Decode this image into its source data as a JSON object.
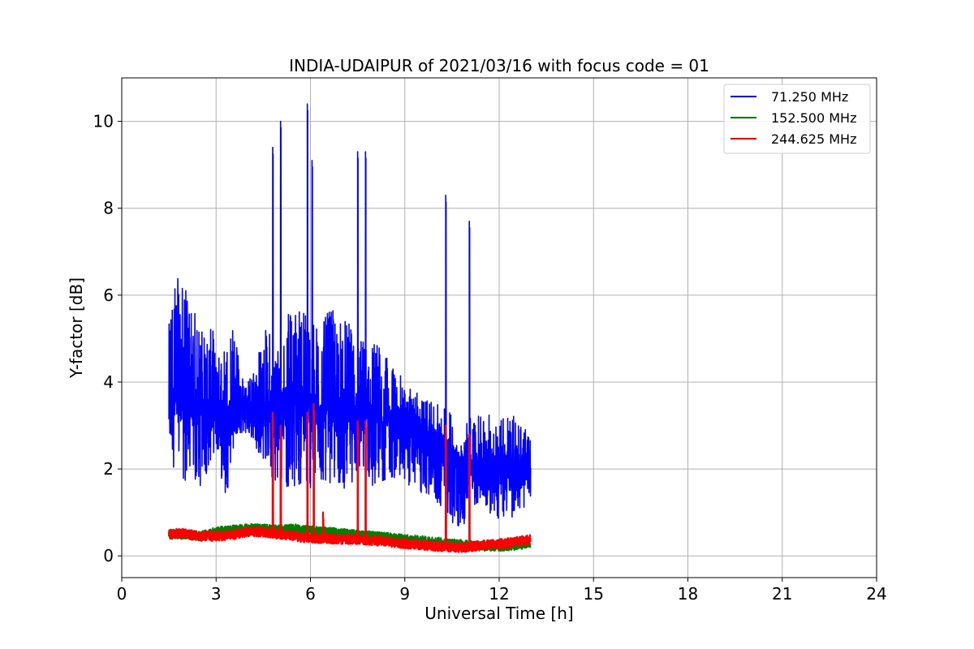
{
  "chart_data": {
    "type": "line",
    "title": "INDIA-UDAIPUR of 2021/03/16 with focus code = 01",
    "xlabel": "Universal Time [h]",
    "ylabel": "Y-factor [dB]",
    "xlim": [
      0,
      24
    ],
    "ylim": [
      -0.5,
      11.0
    ],
    "xticks": [
      0,
      3,
      6,
      9,
      12,
      15,
      18,
      21,
      24
    ],
    "yticks": [
      0,
      2,
      4,
      6,
      8,
      10
    ],
    "grid": true,
    "legend_position": "top-right",
    "series": [
      {
        "name": " 71.250 MHz",
        "color": "#0000ff",
        "baseline": [
          [
            1.5,
            3.4
          ],
          [
            2.0,
            3.6
          ],
          [
            2.5,
            3.3
          ],
          [
            3.0,
            3.3
          ],
          [
            3.5,
            3.2
          ],
          [
            4.0,
            3.3
          ],
          [
            4.5,
            3.4
          ],
          [
            5.0,
            3.5
          ],
          [
            5.5,
            3.6
          ],
          [
            6.0,
            3.4
          ],
          [
            6.5,
            3.3
          ],
          [
            7.0,
            3.4
          ],
          [
            7.5,
            3.2
          ],
          [
            8.0,
            3.1
          ],
          [
            8.5,
            3.1
          ],
          [
            9.0,
            3.0
          ],
          [
            9.5,
            2.8
          ],
          [
            10.0,
            2.5
          ],
          [
            10.5,
            2.2
          ],
          [
            11.0,
            2.0
          ],
          [
            11.5,
            1.9
          ],
          [
            12.0,
            1.9
          ],
          [
            12.5,
            1.9
          ],
          [
            13.0,
            2.0
          ]
        ],
        "envelope_max": [
          [
            1.5,
            5.3
          ],
          [
            1.6,
            6.3
          ],
          [
            1.8,
            6.4
          ],
          [
            2.0,
            6.2
          ],
          [
            2.2,
            5.9
          ],
          [
            2.5,
            5.3
          ],
          [
            2.9,
            5.2
          ],
          [
            3.0,
            4.5
          ],
          [
            3.2,
            4.8
          ],
          [
            3.5,
            5.4
          ],
          [
            3.8,
            4.4
          ],
          [
            4.0,
            4.0
          ],
          [
            4.3,
            4.6
          ],
          [
            4.6,
            5.3
          ],
          [
            5.0,
            5.0
          ],
          [
            5.3,
            5.6
          ],
          [
            5.6,
            5.9
          ],
          [
            6.0,
            5.7
          ],
          [
            6.3,
            5.2
          ],
          [
            6.6,
            5.7
          ],
          [
            7.0,
            5.5
          ],
          [
            7.3,
            5.3
          ],
          [
            7.6,
            5.0
          ],
          [
            8.0,
            5.1
          ],
          [
            8.4,
            4.6
          ],
          [
            8.8,
            4.2
          ],
          [
            9.2,
            3.9
          ],
          [
            9.6,
            3.6
          ],
          [
            10.0,
            3.5
          ],
          [
            10.5,
            3.4
          ],
          [
            10.8,
            2.2
          ],
          [
            11.0,
            3.3
          ],
          [
            11.4,
            3.2
          ],
          [
            11.8,
            3.3
          ],
          [
            12.2,
            3.3
          ],
          [
            12.6,
            3.2
          ],
          [
            13.0,
            2.7
          ]
        ],
        "envelope_min": [
          [
            1.5,
            2.2
          ],
          [
            2.0,
            1.6
          ],
          [
            2.5,
            1.5
          ],
          [
            3.0,
            2.5
          ],
          [
            3.3,
            1.2
          ],
          [
            3.6,
            2.7
          ],
          [
            4.0,
            2.8
          ],
          [
            4.5,
            2.2
          ],
          [
            5.0,
            1.5
          ],
          [
            5.5,
            1.6
          ],
          [
            6.0,
            1.5
          ],
          [
            6.5,
            1.7
          ],
          [
            7.0,
            1.5
          ],
          [
            7.5,
            1.8
          ],
          [
            8.0,
            1.6
          ],
          [
            8.5,
            1.8
          ],
          [
            9.0,
            1.7
          ],
          [
            9.5,
            1.4
          ],
          [
            10.0,
            1.2
          ],
          [
            10.5,
            0.8
          ],
          [
            10.8,
            0.3
          ],
          [
            11.0,
            1.2
          ],
          [
            11.5,
            1.1
          ],
          [
            12.0,
            0.8
          ],
          [
            12.5,
            0.9
          ],
          [
            13.0,
            1.2
          ]
        ],
        "spikes": [
          [
            4.8,
            9.4
          ],
          [
            5.05,
            10.0
          ],
          [
            5.9,
            10.4
          ],
          [
            6.05,
            9.1
          ],
          [
            7.5,
            9.3
          ],
          [
            7.75,
            9.3
          ],
          [
            10.3,
            8.3
          ],
          [
            11.05,
            7.7
          ]
        ]
      },
      {
        "name": "152.500 MHz",
        "color": "#008000",
        "baseline": [
          [
            1.5,
            0.5
          ],
          [
            2.0,
            0.5
          ],
          [
            2.5,
            0.45
          ],
          [
            3.0,
            0.55
          ],
          [
            3.5,
            0.6
          ],
          [
            4.0,
            0.62
          ],
          [
            4.5,
            0.62
          ],
          [
            5.0,
            0.6
          ],
          [
            5.5,
            0.62
          ],
          [
            6.0,
            0.58
          ],
          [
            6.5,
            0.55
          ],
          [
            7.0,
            0.52
          ],
          [
            7.5,
            0.48
          ],
          [
            8.0,
            0.45
          ],
          [
            8.5,
            0.42
          ],
          [
            9.0,
            0.38
          ],
          [
            9.5,
            0.35
          ],
          [
            10.0,
            0.32
          ],
          [
            10.5,
            0.28
          ],
          [
            11.0,
            0.25
          ],
          [
            11.5,
            0.22
          ],
          [
            12.0,
            0.22
          ],
          [
            12.5,
            0.24
          ],
          [
            13.0,
            0.3
          ]
        ],
        "spikes": []
      },
      {
        "name": "244.625 MHz",
        "color": "#ff0000",
        "baseline": [
          [
            1.5,
            0.5
          ],
          [
            2.0,
            0.52
          ],
          [
            2.5,
            0.45
          ],
          [
            3.0,
            0.45
          ],
          [
            3.5,
            0.48
          ],
          [
            4.0,
            0.55
          ],
          [
            4.5,
            0.55
          ],
          [
            5.0,
            0.5
          ],
          [
            5.5,
            0.45
          ],
          [
            6.0,
            0.4
          ],
          [
            6.5,
            0.4
          ],
          [
            7.0,
            0.38
          ],
          [
            7.5,
            0.38
          ],
          [
            8.0,
            0.35
          ],
          [
            8.5,
            0.32
          ],
          [
            9.0,
            0.28
          ],
          [
            9.5,
            0.25
          ],
          [
            10.0,
            0.22
          ],
          [
            10.5,
            0.2
          ],
          [
            11.0,
            0.2
          ],
          [
            11.5,
            0.25
          ],
          [
            12.0,
            0.28
          ],
          [
            12.5,
            0.32
          ],
          [
            13.0,
            0.38
          ]
        ],
        "spikes": [
          [
            4.8,
            3.3
          ],
          [
            5.05,
            3.0
          ],
          [
            5.9,
            3.3
          ],
          [
            6.1,
            3.5
          ],
          [
            6.4,
            1.0
          ],
          [
            7.5,
            3.1
          ],
          [
            7.75,
            3.1
          ],
          [
            10.3,
            3.0
          ],
          [
            11.05,
            2.8
          ]
        ]
      }
    ]
  }
}
